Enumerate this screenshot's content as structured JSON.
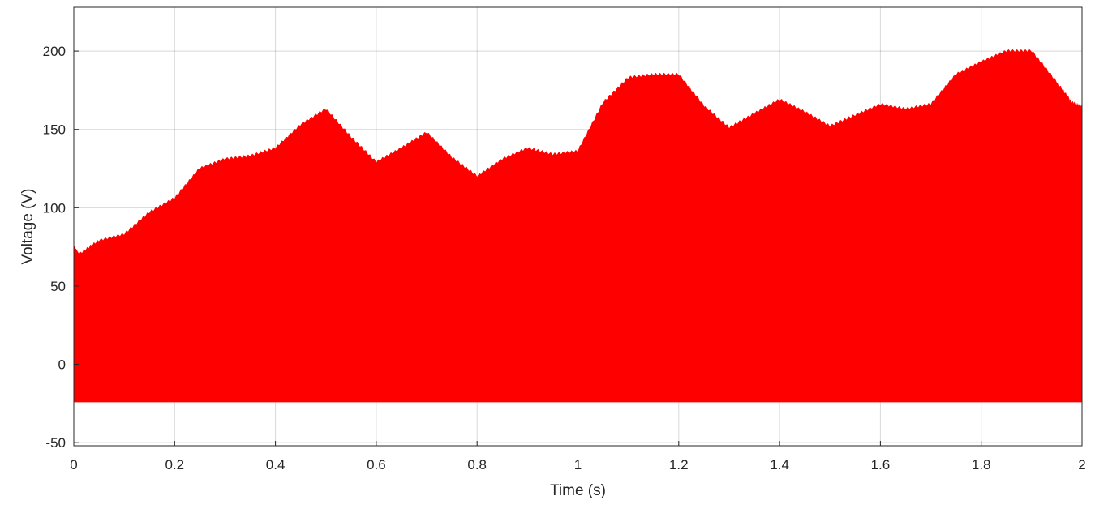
{
  "chart_data": {
    "type": "area",
    "title": "",
    "xlabel": "Time (s)",
    "ylabel": "Voltage (V)",
    "xlim": [
      0,
      2
    ],
    "ylim": [
      -52,
      228
    ],
    "xticks": [
      "0",
      "0.2",
      "0.4",
      "0.6",
      "0.8",
      "1",
      "1.2",
      "1.4",
      "1.6",
      "1.8",
      "2"
    ],
    "yticks": [
      "-50",
      "0",
      "50",
      "100",
      "150",
      "200"
    ],
    "grid": true,
    "fill_color": "#ff0000",
    "lower_bound": -24,
    "upper_envelope": {
      "x": [
        0,
        0.01,
        0.05,
        0.1,
        0.15,
        0.2,
        0.25,
        0.3,
        0.35,
        0.4,
        0.45,
        0.5,
        0.55,
        0.6,
        0.65,
        0.7,
        0.75,
        0.8,
        0.85,
        0.9,
        0.95,
        1.0,
        1.05,
        1.1,
        1.15,
        1.2,
        1.25,
        1.3,
        1.35,
        1.4,
        1.45,
        1.5,
        1.55,
        1.6,
        1.65,
        1.7,
        1.75,
        1.8,
        1.85,
        1.9,
        1.95,
        1.98,
        2.0
      ],
      "y": [
        75,
        70,
        79,
        83,
        97,
        106,
        125,
        131,
        133,
        138,
        153,
        163,
        145,
        129,
        138,
        148,
        132,
        120,
        131,
        138,
        134,
        136,
        167,
        183,
        185,
        185,
        165,
        151,
        160,
        169,
        161,
        152,
        159,
        166,
        163,
        166,
        185,
        193,
        200,
        200,
        180,
        167,
        164
      ]
    }
  }
}
